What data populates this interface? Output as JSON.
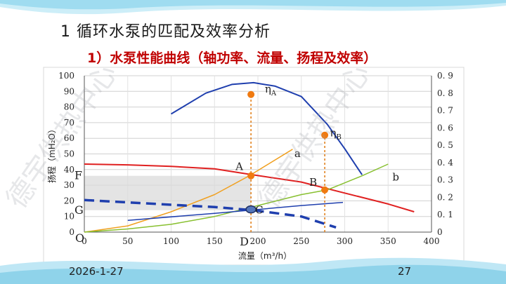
{
  "slide": {
    "heading": "1 循环水泵的匹配及效率分析",
    "subheading": "1）水泵性能曲线（轴功率、流量、扬程及效率）",
    "date": "2026-1-27",
    "page_number": "27",
    "watermark": "德宇供热中心",
    "colors": {
      "background": "#ffffff",
      "heading": "#1a1a1a",
      "subheading": "#c00000",
      "wave": "#8fd3ea"
    }
  },
  "chart_data": {
    "type": "line",
    "xlabel": "流量（m³/h）",
    "ylabel": "扬程（mH₂O）",
    "xlim": [
      0,
      400
    ],
    "ylim_left": [
      0,
      100
    ],
    "ylim_right": [
      0,
      0.9
    ],
    "x_ticks": [
      0,
      50,
      100,
      150,
      200,
      250,
      300,
      350,
      400
    ],
    "x_tick_labels": [
      "0",
      "50",
      "100",
      "150",
      "200",
      "250",
      "300",
      "350",
      "400"
    ],
    "y_ticks_left": [
      0,
      10,
      20,
      30,
      40,
      50,
      60,
      70,
      80,
      90,
      100
    ],
    "y_tick_labels_left": [
      "0",
      "10",
      "20",
      "30",
      "40",
      "50",
      "60",
      "70",
      "80",
      "90",
      "100"
    ],
    "y_ticks_right": [
      0,
      0.1,
      0.2,
      0.3,
      0.4,
      0.5,
      0.6,
      0.7,
      0.8,
      0.9
    ],
    "y_tick_labels_right": [
      "0",
      "0. 1",
      "0. 2",
      "0. 3",
      "0. 4",
      "0. 5",
      "0. 6",
      "0. 7",
      "0. 8",
      "0. 9"
    ],
    "grid": true,
    "series": [
      {
        "id": "head",
        "color": "#e02020",
        "width": 2,
        "dash": "",
        "points": [
          [
            0,
            43.5
          ],
          [
            50,
            43
          ],
          [
            100,
            42
          ],
          [
            150,
            40.5
          ],
          [
            190,
            37
          ],
          [
            250,
            32
          ],
          [
            300,
            25
          ],
          [
            350,
            18
          ],
          [
            380,
            13
          ]
        ]
      },
      {
        "id": "a",
        "color": "#f0a020",
        "width": 1.5,
        "dash": "",
        "points": [
          [
            0,
            0
          ],
          [
            50,
            4
          ],
          [
            100,
            13
          ],
          [
            150,
            24
          ],
          [
            190,
            36
          ],
          [
            240,
            53
          ]
        ]
      },
      {
        "id": "b",
        "color": "#88c030",
        "width": 1.5,
        "dash": "",
        "points": [
          [
            0,
            0
          ],
          [
            50,
            2
          ],
          [
            100,
            5
          ],
          [
            150,
            10
          ],
          [
            200,
            17
          ],
          [
            250,
            24
          ],
          [
            280,
            27
          ],
          [
            320,
            36
          ],
          [
            350,
            43.5
          ]
        ]
      },
      {
        "id": "eta",
        "color": "#1f3fae",
        "width": 2,
        "dash": "",
        "points": [
          [
            100,
            0.68
          ],
          [
            140,
            0.8
          ],
          [
            170,
            0.85
          ],
          [
            195,
            0.86
          ],
          [
            220,
            0.84
          ],
          [
            250,
            0.78
          ],
          [
            280,
            0.62
          ],
          [
            300,
            0.48
          ],
          [
            320,
            0.33
          ]
        ]
      },
      {
        "id": "power-line",
        "color": "#1f3fae",
        "width": 1.5,
        "dash": "",
        "points": [
          [
            50,
            7.5
          ],
          [
            150,
            12
          ],
          [
            200,
            14.5
          ],
          [
            250,
            17
          ],
          [
            298,
            19
          ]
        ]
      },
      {
        "id": "power-dashed",
        "color": "#1f3fae",
        "width": 3.5,
        "dash": "14 8",
        "points": [
          [
            0,
            20.5
          ],
          [
            50,
            19
          ],
          [
            100,
            17.5
          ],
          [
            150,
            16
          ],
          [
            195,
            14
          ],
          [
            250,
            10
          ],
          [
            290,
            3
          ]
        ]
      }
    ],
    "points": [
      {
        "id": "A",
        "x": 192,
        "y": 36,
        "color": "#f07a10",
        "label": "A",
        "label_dx": -22,
        "label_dy": -8
      },
      {
        "id": "B",
        "x": 277,
        "y": 27,
        "color": "#f07a10",
        "label": "B",
        "label_dx": -22,
        "label_dy": -6
      },
      {
        "id": "eta-A",
        "x": 192,
        "y": 88,
        "color": "#f07a10",
        "label": ""
      },
      {
        "id": "eta-B",
        "x": 277,
        "y": 62,
        "color": "#f07a10",
        "label": ""
      },
      {
        "id": "C",
        "x": 192,
        "y": 14.5,
        "color": "#5577bb",
        "label": "C",
        "label_dx": 6,
        "label_dy": 6,
        "ellipse": true
      }
    ],
    "reference_lines": [
      {
        "id": "vline-D",
        "x": 192,
        "y_from": 0,
        "y_to": 88,
        "color": "#e07a10"
      },
      {
        "id": "vline-B",
        "x": 277,
        "y_from": 0,
        "y_to": 62,
        "color": "#e07a10"
      }
    ],
    "shaded_band": {
      "y_from": 14,
      "y_to": 36,
      "x_from": 0,
      "x_to": 192,
      "color": "#d8d8d8"
    },
    "annotations": {
      "curve_a": "a",
      "curve_b": "b",
      "eta_a_base": "η",
      "eta_a_sub": "A",
      "eta_b_base": "η",
      "eta_b_sub": "B",
      "F": "F",
      "G": "G",
      "O": "O",
      "D": "D"
    }
  }
}
